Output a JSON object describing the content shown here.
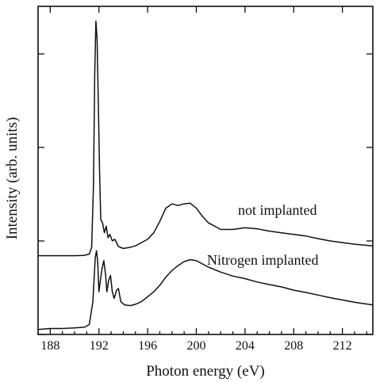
{
  "chart_data": {
    "type": "line",
    "title": "",
    "xlabel": "Photon energy (eV)",
    "ylabel": "Intensity (arb. units)",
    "xlim": [
      187,
      214.5
    ],
    "ylim": [
      0,
      1
    ],
    "x_ticks": [
      188,
      192,
      196,
      200,
      204,
      208,
      212
    ],
    "x_tick_labels": [
      "188",
      "192",
      "196",
      "200",
      "204",
      "208",
      "212"
    ],
    "y_ticks_unlabeled": [
      0.0,
      0.285,
      0.57,
      0.855
    ],
    "grid": false,
    "legend": "none",
    "series": [
      {
        "name": "not implanted",
        "color": "#111111",
        "points": [
          [
            187.0,
            0.24
          ],
          [
            188.0,
            0.24
          ],
          [
            189.0,
            0.24
          ],
          [
            190.0,
            0.24
          ],
          [
            190.8,
            0.241
          ],
          [
            191.2,
            0.245
          ],
          [
            191.4,
            0.265
          ],
          [
            191.55,
            0.45
          ],
          [
            191.65,
            0.79
          ],
          [
            191.75,
            0.955
          ],
          [
            191.85,
            0.9
          ],
          [
            191.95,
            0.7
          ],
          [
            192.05,
            0.5
          ],
          [
            192.15,
            0.35
          ],
          [
            192.3,
            0.34
          ],
          [
            192.45,
            0.31
          ],
          [
            192.6,
            0.33
          ],
          [
            192.75,
            0.295
          ],
          [
            192.9,
            0.305
          ],
          [
            193.1,
            0.285
          ],
          [
            193.3,
            0.29
          ],
          [
            193.6,
            0.268
          ],
          [
            194.0,
            0.262
          ],
          [
            194.5,
            0.265
          ],
          [
            195.0,
            0.27
          ],
          [
            195.5,
            0.28
          ],
          [
            196.0,
            0.29
          ],
          [
            196.5,
            0.31
          ],
          [
            197.0,
            0.345
          ],
          [
            197.5,
            0.385
          ],
          [
            198.0,
            0.398
          ],
          [
            198.5,
            0.393
          ],
          [
            199.0,
            0.398
          ],
          [
            199.5,
            0.4
          ],
          [
            200.0,
            0.385
          ],
          [
            200.5,
            0.36
          ],
          [
            201.0,
            0.34
          ],
          [
            202.0,
            0.32
          ],
          [
            203.0,
            0.32
          ],
          [
            204.0,
            0.325
          ],
          [
            205.0,
            0.322
          ],
          [
            206.0,
            0.315
          ],
          [
            207.0,
            0.31
          ],
          [
            208.0,
            0.305
          ],
          [
            209.0,
            0.3
          ],
          [
            210.0,
            0.292
          ],
          [
            211.0,
            0.285
          ],
          [
            212.0,
            0.28
          ],
          [
            213.0,
            0.275
          ],
          [
            214.5,
            0.27
          ]
        ]
      },
      {
        "name": "Nitrogen implanted",
        "color": "#111111",
        "points": [
          [
            187.0,
            0.015
          ],
          [
            188.0,
            0.018
          ],
          [
            189.0,
            0.018
          ],
          [
            190.0,
            0.02
          ],
          [
            190.8,
            0.022
          ],
          [
            191.2,
            0.03
          ],
          [
            191.5,
            0.1
          ],
          [
            191.7,
            0.235
          ],
          [
            191.8,
            0.255
          ],
          [
            191.9,
            0.22
          ],
          [
            192.0,
            0.13
          ],
          [
            192.1,
            0.16
          ],
          [
            192.25,
            0.2
          ],
          [
            192.4,
            0.225
          ],
          [
            192.55,
            0.18
          ],
          [
            192.65,
            0.13
          ],
          [
            192.8,
            0.165
          ],
          [
            192.95,
            0.18
          ],
          [
            193.1,
            0.13
          ],
          [
            193.25,
            0.11
          ],
          [
            193.45,
            0.135
          ],
          [
            193.6,
            0.14
          ],
          [
            193.8,
            0.1
          ],
          [
            194.1,
            0.09
          ],
          [
            194.6,
            0.088
          ],
          [
            195.0,
            0.092
          ],
          [
            195.5,
            0.1
          ],
          [
            196.0,
            0.115
          ],
          [
            196.5,
            0.13
          ],
          [
            197.0,
            0.15
          ],
          [
            197.5,
            0.175
          ],
          [
            198.0,
            0.195
          ],
          [
            198.5,
            0.21
          ],
          [
            199.0,
            0.222
          ],
          [
            199.5,
            0.228
          ],
          [
            200.0,
            0.225
          ],
          [
            200.5,
            0.215
          ],
          [
            201.0,
            0.205
          ],
          [
            202.0,
            0.19
          ],
          [
            203.0,
            0.178
          ],
          [
            204.0,
            0.17
          ],
          [
            205.0,
            0.16
          ],
          [
            206.0,
            0.152
          ],
          [
            207.0,
            0.145
          ],
          [
            208.0,
            0.135
          ],
          [
            209.0,
            0.128
          ],
          [
            210.0,
            0.12
          ],
          [
            211.0,
            0.112
          ],
          [
            212.0,
            0.105
          ],
          [
            213.0,
            0.098
          ],
          [
            214.5,
            0.09
          ]
        ]
      }
    ]
  }
}
